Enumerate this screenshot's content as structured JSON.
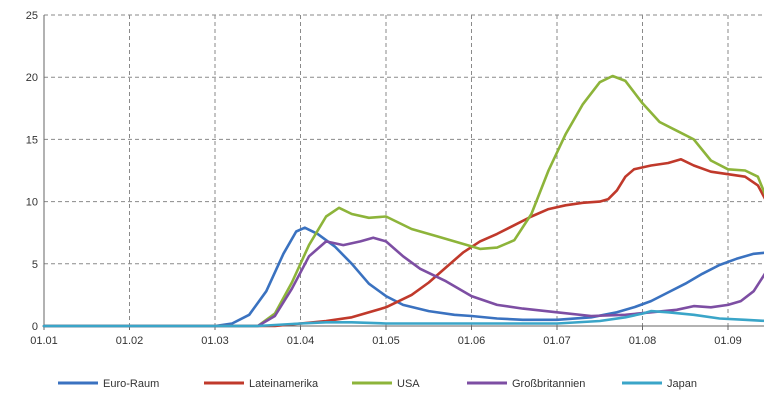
{
  "chart_data": {
    "type": "line",
    "title": "",
    "xlabel": "",
    "ylabel": "",
    "x_ticks": [
      "01.01",
      "01.02",
      "01.03",
      "01.04",
      "01.05",
      "01.06",
      "01.07",
      "01.08",
      "01.09"
    ],
    "y_ticks": [
      0,
      5,
      10,
      15,
      20,
      25
    ],
    "ylim": [
      0,
      25
    ],
    "xlim_months": [
      1,
      9.45
    ],
    "grid": true,
    "legend_position": "bottom",
    "series": [
      {
        "name": "Euro-Raum",
        "color": "#3a72c0",
        "x": [
          1.0,
          2.0,
          3.0,
          3.2,
          3.4,
          3.6,
          3.8,
          3.95,
          4.05,
          4.2,
          4.4,
          4.6,
          4.8,
          5.0,
          5.2,
          5.5,
          5.8,
          6.0,
          6.3,
          6.6,
          7.0,
          7.4,
          7.7,
          7.9,
          8.1,
          8.3,
          8.5,
          8.7,
          8.9,
          9.1,
          9.3,
          9.45
        ],
        "y": [
          0,
          0,
          0,
          0.2,
          0.9,
          2.8,
          5.8,
          7.6,
          7.9,
          7.4,
          6.4,
          5.0,
          3.4,
          2.4,
          1.7,
          1.2,
          0.9,
          0.8,
          0.6,
          0.5,
          0.5,
          0.7,
          1.1,
          1.5,
          2.0,
          2.7,
          3.4,
          4.2,
          4.9,
          5.4,
          5.8,
          5.9
        ]
      },
      {
        "name": "Lateinamerika",
        "color": "#c0392b",
        "x": [
          1.0,
          3.0,
          3.7,
          4.0,
          4.3,
          4.6,
          5.0,
          5.3,
          5.5,
          5.7,
          5.9,
          6.1,
          6.3,
          6.5,
          6.7,
          6.9,
          7.1,
          7.3,
          7.5,
          7.6,
          7.7,
          7.8,
          7.9,
          8.1,
          8.3,
          8.45,
          8.6,
          8.8,
          9.0,
          9.2,
          9.35,
          9.45
        ],
        "y": [
          0,
          0,
          0,
          0.2,
          0.4,
          0.7,
          1.5,
          2.5,
          3.5,
          4.7,
          5.9,
          6.8,
          7.4,
          8.1,
          8.8,
          9.4,
          9.7,
          9.9,
          10.0,
          10.2,
          10.9,
          12.0,
          12.6,
          12.9,
          13.1,
          13.4,
          12.9,
          12.4,
          12.2,
          12.0,
          11.3,
          10.0
        ]
      },
      {
        "name": "USA",
        "color": "#8db43a",
        "x": [
          1.0,
          3.0,
          3.5,
          3.7,
          3.9,
          4.1,
          4.3,
          4.45,
          4.6,
          4.8,
          5.0,
          5.3,
          5.6,
          5.9,
          6.1,
          6.3,
          6.5,
          6.7,
          6.9,
          7.1,
          7.3,
          7.5,
          7.65,
          7.8,
          8.0,
          8.2,
          8.4,
          8.6,
          8.8,
          9.0,
          9.2,
          9.35,
          9.45
        ],
        "y": [
          0,
          0,
          0,
          1.0,
          3.5,
          6.5,
          8.8,
          9.5,
          9.0,
          8.7,
          8.8,
          7.8,
          7.2,
          6.6,
          6.2,
          6.3,
          6.9,
          9.0,
          12.5,
          15.4,
          17.8,
          19.6,
          20.1,
          19.7,
          17.9,
          16.4,
          15.7,
          15.0,
          13.3,
          12.6,
          12.5,
          12.0,
          10.3
        ]
      },
      {
        "name": "Großbritannien",
        "color": "#7d4ea3",
        "x": [
          1.0,
          3.0,
          3.5,
          3.7,
          3.9,
          4.1,
          4.3,
          4.5,
          4.7,
          4.85,
          5.0,
          5.2,
          5.4,
          5.7,
          6.0,
          6.3,
          6.6,
          7.0,
          7.4,
          7.8,
          8.1,
          8.4,
          8.6,
          8.8,
          9.0,
          9.15,
          9.3,
          9.45
        ],
        "y": [
          0,
          0,
          0,
          0.8,
          3.0,
          5.6,
          6.8,
          6.5,
          6.8,
          7.1,
          6.8,
          5.6,
          4.6,
          3.6,
          2.4,
          1.7,
          1.4,
          1.1,
          0.8,
          0.9,
          1.1,
          1.3,
          1.6,
          1.5,
          1.7,
          2.0,
          2.8,
          4.4
        ]
      },
      {
        "name": "Japan",
        "color": "#3aa5c8",
        "x": [
          1.0,
          3.0,
          3.5,
          4.0,
          4.3,
          4.6,
          5.0,
          5.5,
          6.0,
          6.5,
          7.0,
          7.5,
          7.8,
          8.0,
          8.1,
          8.3,
          8.6,
          8.9,
          9.2,
          9.45
        ],
        "y": [
          0,
          0,
          0,
          0.2,
          0.3,
          0.3,
          0.2,
          0.2,
          0.2,
          0.2,
          0.2,
          0.4,
          0.7,
          1.0,
          1.2,
          1.1,
          0.9,
          0.6,
          0.5,
          0.4
        ]
      }
    ]
  }
}
